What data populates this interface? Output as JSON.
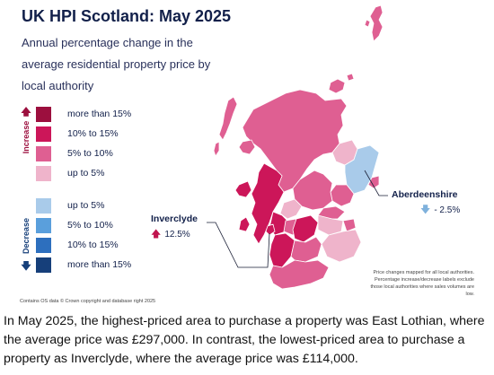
{
  "title": "UK HPI Scotland: May 2025",
  "subtitle": "Annual percentage change in the average residential property price by local authority",
  "legend": {
    "increase_label": "Increase",
    "decrease_label": "Decrease",
    "increase": [
      {
        "label": "more than 15%",
        "color": "#9c0f3e"
      },
      {
        "label": "10% to 15%",
        "color": "#cc1659"
      },
      {
        "label": "5% to 10%",
        "color": "#df5f92"
      },
      {
        "label": "up to 5%",
        "color": "#efb4cb"
      }
    ],
    "decrease": [
      {
        "label": "up to 5%",
        "color": "#a9cbea"
      },
      {
        "label": "5% to 10%",
        "color": "#5a9fdc"
      },
      {
        "label": "10% to 15%",
        "color": "#2d6fbe"
      },
      {
        "label": "more than 15%",
        "color": "#163f7a"
      }
    ]
  },
  "callouts": {
    "inverclyde": {
      "name": "Inverclyde",
      "value": "12.5%",
      "direction": "up"
    },
    "aberdeenshire": {
      "name": "Aberdeenshire",
      "value": "- 2.5%",
      "direction": "down"
    }
  },
  "copyright": "Contains OS data © Crown copyright and database right 2025",
  "note": "Price changes mapped for all local authorities. Percentage increase/decrease labels exclude those local authorities where sales volumes are low.",
  "caption": "In May 2025, the highest-priced area to purchase a property was East Lothian, where the average price was £297,000. In contrast, the lowest-priced area to purchase a property as Inverclyde, where the average price was £114,000."
}
